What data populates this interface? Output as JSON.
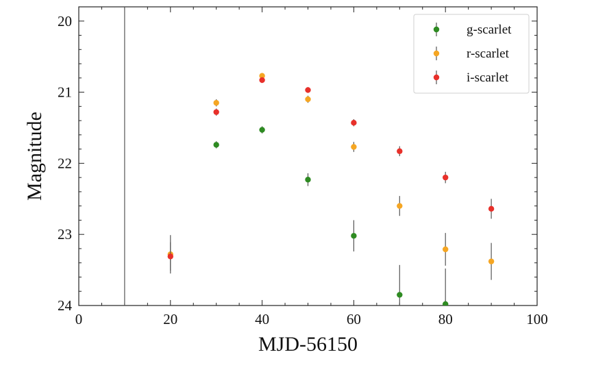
{
  "chart_data": {
    "type": "scatter",
    "title": "",
    "xlabel": "MJD-56150",
    "ylabel": "Magnitude",
    "xlim": [
      0,
      100
    ],
    "ylim": [
      24,
      19.8
    ],
    "y_inverted": true,
    "xticks": [
      0,
      20,
      40,
      60,
      80,
      100
    ],
    "yticks": [
      20,
      21,
      22,
      23,
      24
    ],
    "legend_position": "top-right",
    "vertical_line_x": 10,
    "series": [
      {
        "name": "g-scarlet",
        "color": "#2e8b22",
        "points": [
          {
            "x": 30,
            "y": 21.74,
            "err": 0.05
          },
          {
            "x": 40,
            "y": 21.53,
            "err": 0.05
          },
          {
            "x": 50,
            "y": 22.23,
            "err": 0.09
          },
          {
            "x": 60,
            "y": 23.02,
            "err": 0.22
          },
          {
            "x": 70,
            "y": 23.85,
            "err": 0.42
          },
          {
            "x": 80,
            "y": 23.98,
            "err": 0.5
          }
        ]
      },
      {
        "name": "r-scarlet",
        "color": "#f5a623",
        "points": [
          {
            "x": 20,
            "y": 23.28,
            "err": 0.27
          },
          {
            "x": 30,
            "y": 21.15,
            "err": 0.05
          },
          {
            "x": 40,
            "y": 20.77,
            "err": 0.04
          },
          {
            "x": 50,
            "y": 21.1,
            "err": 0.05
          },
          {
            "x": 60,
            "y": 21.77,
            "err": 0.07
          },
          {
            "x": 70,
            "y": 22.6,
            "err": 0.14
          },
          {
            "x": 80,
            "y": 23.21,
            "err": 0.23
          },
          {
            "x": 90,
            "y": 23.38,
            "err": 0.26
          }
        ]
      },
      {
        "name": "i-scarlet",
        "color": "#e8302a",
        "points": [
          {
            "x": 20,
            "y": 23.31,
            "err": 0.2
          },
          {
            "x": 30,
            "y": 21.28,
            "err": 0.05
          },
          {
            "x": 40,
            "y": 20.83,
            "err": 0.04
          },
          {
            "x": 50,
            "y": 20.97,
            "err": 0.04
          },
          {
            "x": 60,
            "y": 21.43,
            "err": 0.05
          },
          {
            "x": 70,
            "y": 21.83,
            "err": 0.07
          },
          {
            "x": 80,
            "y": 22.2,
            "err": 0.08
          },
          {
            "x": 90,
            "y": 22.64,
            "err": 0.14
          }
        ]
      }
    ]
  }
}
